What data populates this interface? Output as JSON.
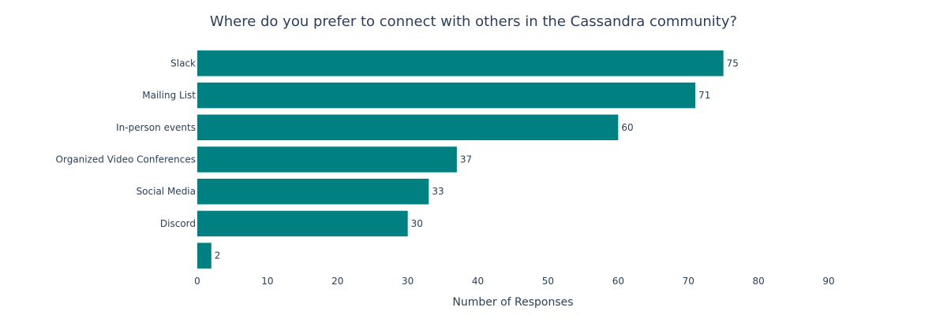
{
  "chart_data": {
    "type": "bar",
    "orientation": "horizontal",
    "title": "Where do you prefer to connect with others in the Cassandra community?",
    "xlabel": "Number of Responses",
    "ylabel": "",
    "xlim": [
      0,
      90
    ],
    "xticks": [
      "0",
      "10",
      "20",
      "30",
      "40",
      "50",
      "60",
      "70",
      "80",
      "90"
    ],
    "categories": [
      "Slack",
      "Mailing List",
      "In-person events",
      "Organized Video Conferences",
      "Social Media",
      "Discord",
      ""
    ],
    "values": [
      75,
      71,
      60,
      37,
      33,
      30,
      2
    ],
    "value_labels": [
      "75",
      "71",
      "60",
      "37",
      "33",
      "30",
      "2"
    ],
    "bar_color": "#008080",
    "grid": false,
    "legend": "none"
  }
}
